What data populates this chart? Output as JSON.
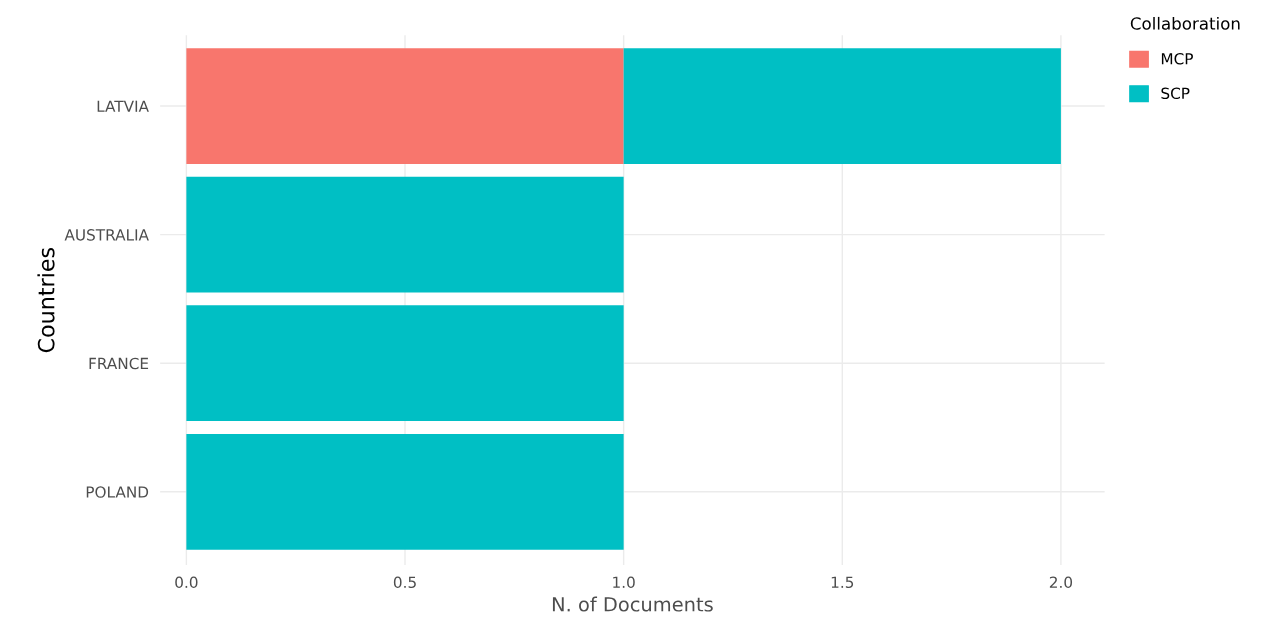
{
  "chart_data": {
    "type": "bar",
    "orientation": "horizontal",
    "stacked": true,
    "categories": [
      "LATVIA",
      "AUSTRALIA",
      "FRANCE",
      "POLAND"
    ],
    "series": [
      {
        "name": "MCP",
        "color": "#f8766d",
        "values": [
          1,
          0,
          0,
          0
        ]
      },
      {
        "name": "SCP",
        "color": "#00bfc4",
        "values": [
          1,
          1,
          1,
          1
        ]
      }
    ],
    "xlabel": "N. of Documents",
    "ylabel": "Countries",
    "legend_title": "Collaboration",
    "xlim": [
      -0.06,
      2.1
    ],
    "xticks": [
      {
        "value": 0,
        "label": "0.0"
      },
      0.5,
      {
        "value": 1,
        "label": "1.0"
      },
      1.5,
      {
        "value": 2,
        "label": "2.0"
      }
    ],
    "grid": true,
    "legend": "top right"
  }
}
